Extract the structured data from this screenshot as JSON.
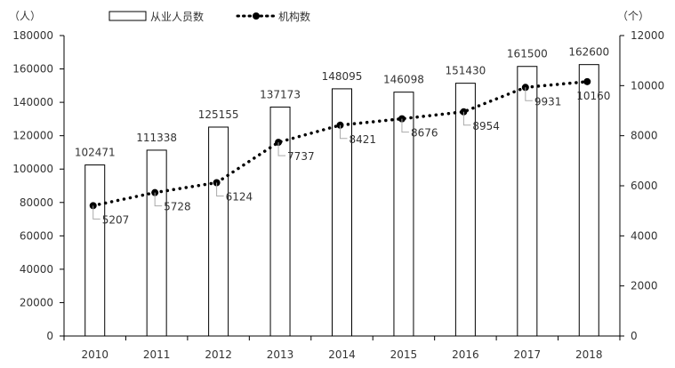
{
  "chart_data": {
    "type": "bar+line",
    "categories": [
      "2010",
      "2011",
      "2012",
      "2013",
      "2014",
      "2015",
      "2016",
      "2017",
      "2018"
    ],
    "series": [
      {
        "name": "从业人员数",
        "type": "bar",
        "axis": "left",
        "values": [
          102471,
          111338,
          125155,
          137173,
          148095,
          146098,
          151430,
          161500,
          162600
        ]
      },
      {
        "name": "机构数",
        "type": "line",
        "style": "dotted",
        "axis": "right",
        "values": [
          5207,
          5728,
          6124,
          7737,
          8421,
          8676,
          8954,
          9931,
          10160
        ]
      }
    ],
    "left_axis": {
      "unit_label": "（人）",
      "range": [
        0,
        180000
      ],
      "ticks": [
        "0",
        "20000",
        "40000",
        "60000",
        "80000",
        "100000",
        "120000",
        "140000",
        "160000",
        "180000"
      ]
    },
    "right_axis": {
      "unit_label": "（个）",
      "range": [
        0,
        12000
      ],
      "ticks": [
        "0",
        "2000",
        "4000",
        "6000",
        "8000",
        "10000",
        "12000"
      ]
    },
    "legend_placement": "top",
    "grid": false,
    "colors": {
      "bar_fill": "#ffffff",
      "bar_stroke": "#000000",
      "line": "#000000"
    }
  }
}
